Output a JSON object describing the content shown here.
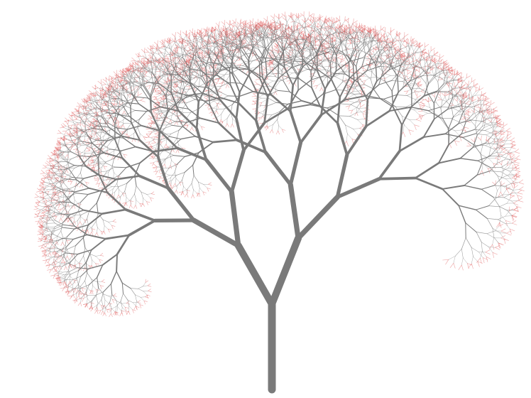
{
  "figure": {
    "subject": "fractal-tree",
    "colors": {
      "background": "#ffffff",
      "branch": "#7a7a7a",
      "leaf": "#e05a5a"
    }
  }
}
